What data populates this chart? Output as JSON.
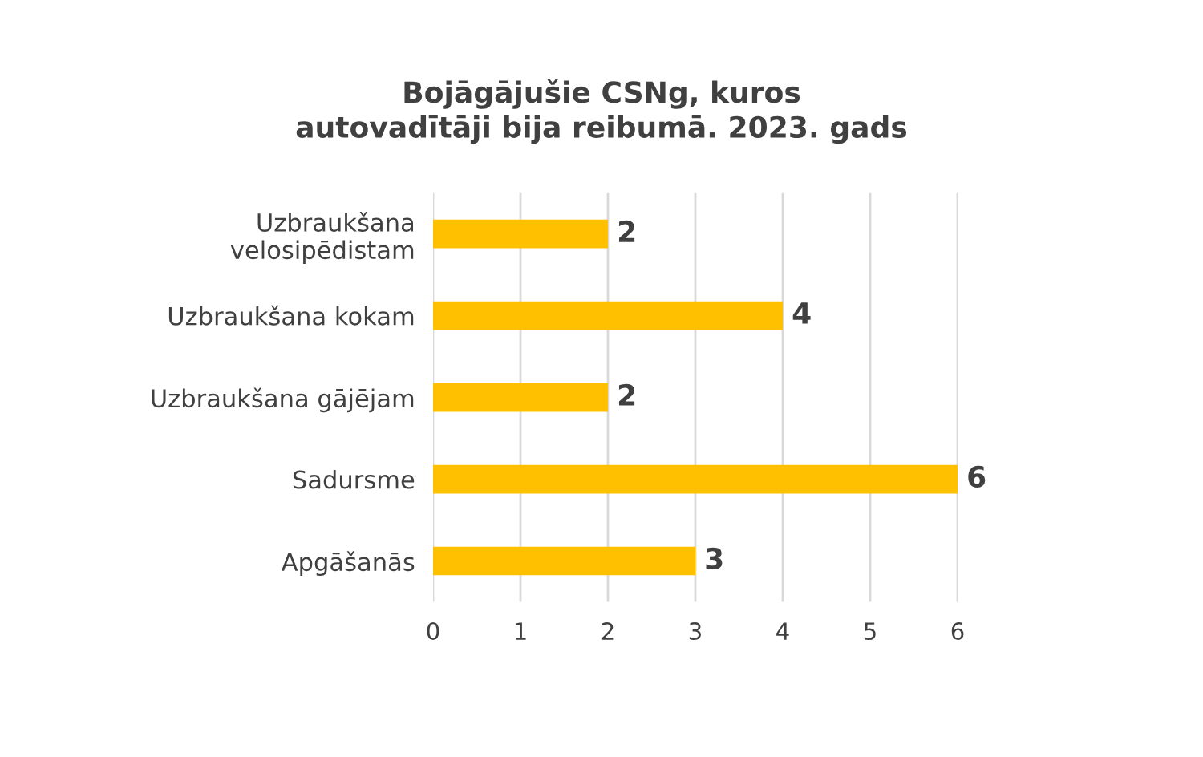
{
  "chart_data": {
    "type": "bar",
    "orientation": "horizontal",
    "title": "Bojāgājušie CSNg, kuros\nautovadītāji bija reibumā. 2023. gads",
    "categories": [
      "Uzbraukšana\nvelosipēdistam",
      "Uzbraukšana kokam",
      "Uzbraukšana gājējam",
      "Sadursme",
      "Apgāšanās"
    ],
    "values": [
      2,
      4,
      2,
      6,
      3
    ],
    "color": "#ffc000",
    "xlim": [
      0,
      6
    ],
    "xticks": [
      0,
      1,
      2,
      3,
      4,
      5,
      6
    ],
    "grid": "x",
    "data_labels": true
  }
}
